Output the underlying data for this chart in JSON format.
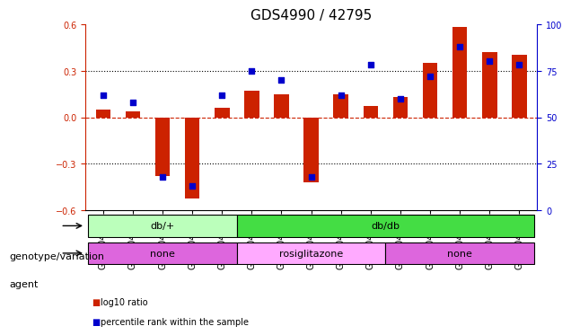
{
  "title": "GDS4990 / 42795",
  "samples": [
    "GSM904674",
    "GSM904675",
    "GSM904676",
    "GSM904677",
    "GSM904678",
    "GSM904684",
    "GSM904685",
    "GSM904686",
    "GSM904687",
    "GSM904688",
    "GSM904679",
    "GSM904680",
    "GSM904681",
    "GSM904682",
    "GSM904683"
  ],
  "log10_ratio": [
    0.05,
    0.04,
    -0.38,
    -0.52,
    0.06,
    0.17,
    0.15,
    -0.42,
    0.15,
    0.07,
    0.13,
    0.35,
    0.58,
    0.42,
    0.4
  ],
  "percentile": [
    62,
    58,
    18,
    13,
    62,
    75,
    70,
    18,
    62,
    78,
    60,
    72,
    88,
    80,
    78
  ],
  "bar_color": "#cc2200",
  "dot_color": "#0000cc",
  "ylim_left": [
    -0.6,
    0.6
  ],
  "ylim_right": [
    0,
    100
  ],
  "yticks_left": [
    -0.6,
    -0.3,
    0.0,
    0.3,
    0.6
  ],
  "yticks_right": [
    0,
    25,
    50,
    75,
    100
  ],
  "genotype_groups": [
    {
      "label": "db/+",
      "start": 0,
      "end": 5,
      "color": "#bbffbb"
    },
    {
      "label": "db/db",
      "start": 5,
      "end": 15,
      "color": "#44dd44"
    }
  ],
  "agent_groups": [
    {
      "label": "none",
      "start": 0,
      "end": 5,
      "color": "#dd66dd"
    },
    {
      "label": "rosiglitazone",
      "start": 5,
      "end": 10,
      "color": "#ffaaff"
    },
    {
      "label": "none",
      "start": 10,
      "end": 15,
      "color": "#dd66dd"
    }
  ],
  "legend_items": [
    {
      "label": "log10 ratio",
      "color": "#cc2200"
    },
    {
      "label": "percentile rank within the sample",
      "color": "#0000cc"
    }
  ],
  "genotype_label": "genotype/variation",
  "agent_label": "agent",
  "title_fontsize": 11,
  "tick_fontsize": 7,
  "label_fontsize": 8
}
